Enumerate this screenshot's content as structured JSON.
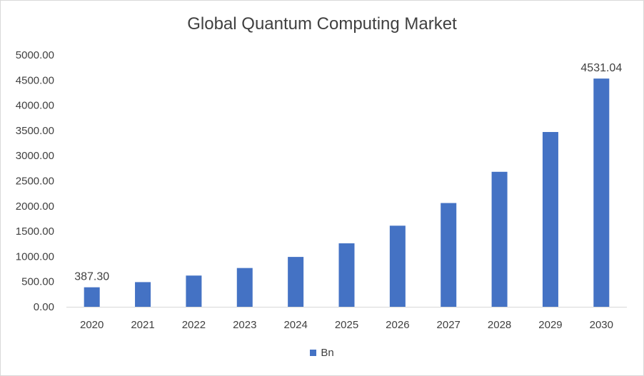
{
  "chart_data": {
    "type": "bar",
    "title": "Global Quantum Computing Market",
    "categories": [
      "2020",
      "2021",
      "2022",
      "2023",
      "2024",
      "2025",
      "2026",
      "2027",
      "2028",
      "2029",
      "2030"
    ],
    "series": [
      {
        "name": "Bn",
        "color": "#4472c4",
        "values": [
          387.3,
          490,
          620,
          770,
          990,
          1260,
          1610,
          2060,
          2680,
          3470,
          4531.04
        ]
      }
    ],
    "data_labels": [
      {
        "index": 0,
        "text": "387.30"
      },
      {
        "index": 10,
        "text": "4531.04"
      }
    ],
    "y_ticks": [
      "0.00",
      "500.00",
      "1000.00",
      "1500.00",
      "2000.00",
      "2500.00",
      "3000.00",
      "3500.00",
      "4000.00",
      "4500.00",
      "5000.00"
    ],
    "ylim": [
      0,
      5000
    ],
    "grid": false,
    "legend_position": "bottom"
  }
}
